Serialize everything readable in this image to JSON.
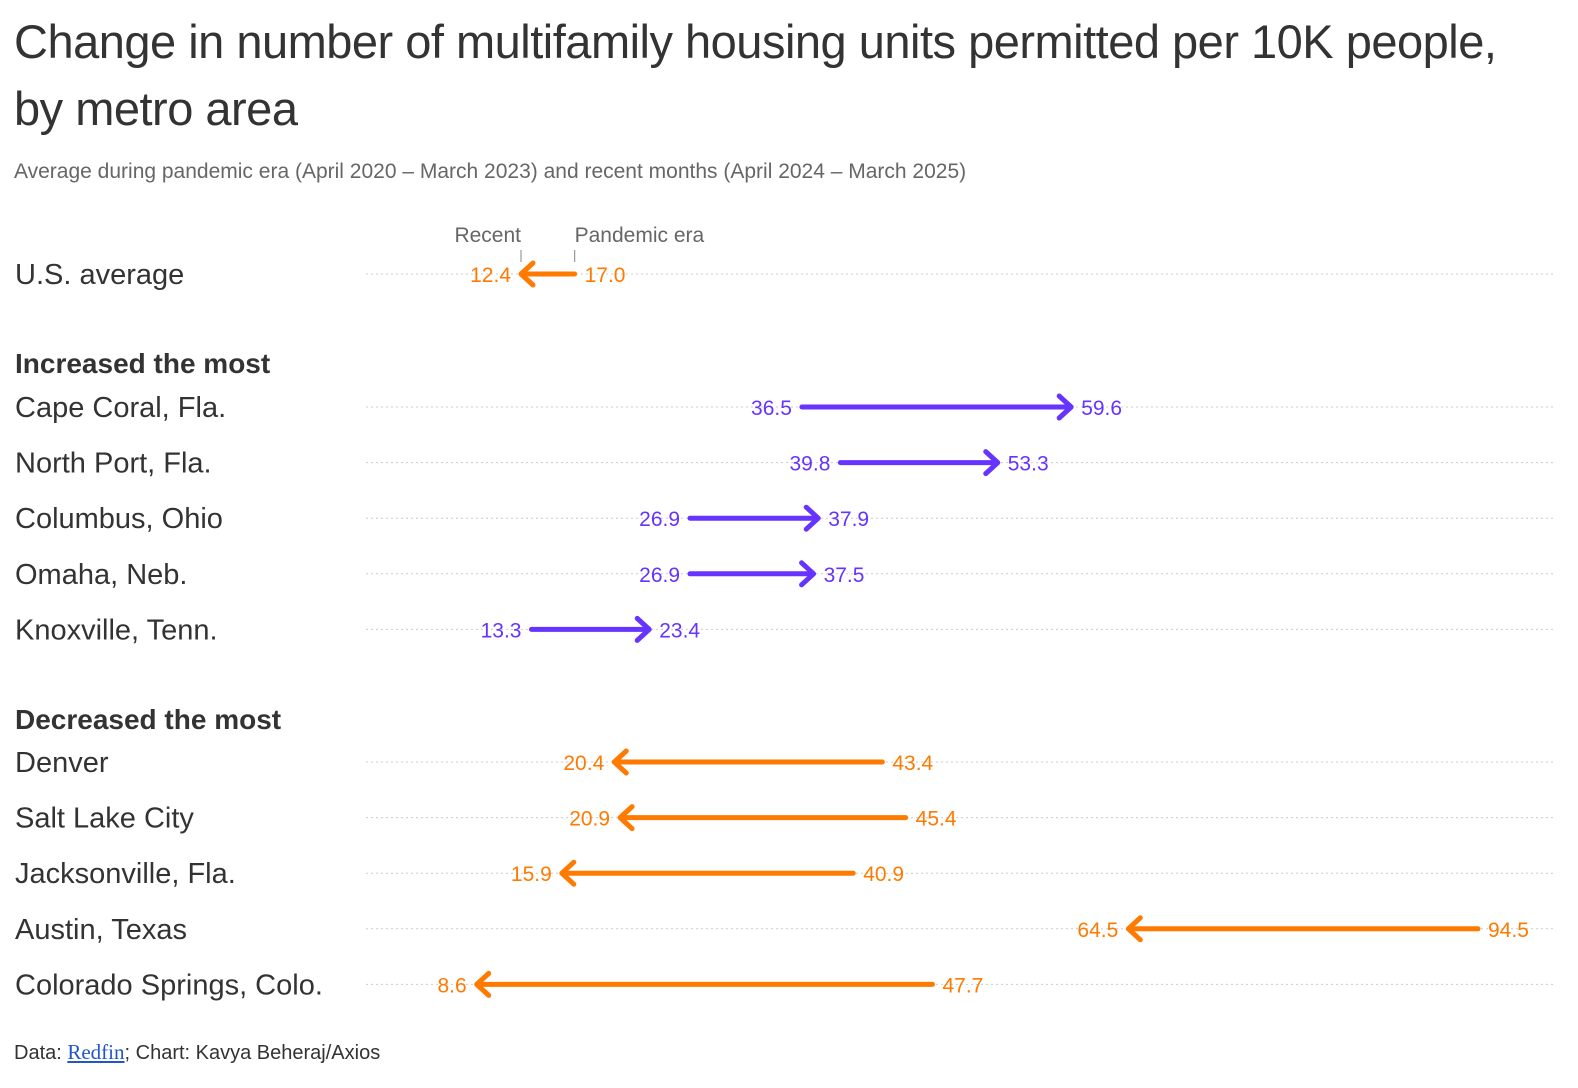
{
  "title": "Change in number of multifamily housing units permitted per 10K people, by metro area",
  "subtitle": "Average during pandemic era (April 2020 – March 2023) and recent months (April 2024 – March 2025)",
  "colors": {
    "increase": "#6633ff",
    "decrease": "#ff7a00",
    "text": "#333333",
    "muted": "#666666",
    "grid": "#cccccc"
  },
  "chart_data": {
    "type": "arrow-dot",
    "legend": {
      "recent_label": "Recent",
      "pandemic_label": "Pandemic era"
    },
    "groups": [
      {
        "heading": "",
        "rows": [
          {
            "metro": "U.S. average",
            "pandemic": 17.0,
            "recent": 12.4,
            "pandemic_label": "17.0",
            "recent_label": "12.4"
          }
        ]
      },
      {
        "heading": "Increased the most",
        "rows": [
          {
            "metro": "Cape Coral, Fla.",
            "pandemic": 36.5,
            "recent": 59.6,
            "pandemic_label": "36.5",
            "recent_label": "59.6"
          },
          {
            "metro": "North Port, Fla.",
            "pandemic": 39.8,
            "recent": 53.3,
            "pandemic_label": "39.8",
            "recent_label": "53.3"
          },
          {
            "metro": "Columbus, Ohio",
            "pandemic": 26.9,
            "recent": 37.9,
            "pandemic_label": "26.9",
            "recent_label": "37.9"
          },
          {
            "metro": "Omaha, Neb.",
            "pandemic": 26.9,
            "recent": 37.5,
            "pandemic_label": "26.9",
            "recent_label": "37.5"
          },
          {
            "metro": "Knoxville, Tenn.",
            "pandemic": 13.3,
            "recent": 23.4,
            "pandemic_label": "13.3",
            "recent_label": "23.4"
          }
        ]
      },
      {
        "heading": "Decreased the most",
        "rows": [
          {
            "metro": "Denver",
            "pandemic": 43.4,
            "recent": 20.4,
            "pandemic_label": "43.4",
            "recent_label": "20.4"
          },
          {
            "metro": "Salt Lake City",
            "pandemic": 45.4,
            "recent": 20.9,
            "pandemic_label": "45.4",
            "recent_label": "20.9"
          },
          {
            "metro": "Jacksonville, Fla.",
            "pandemic": 40.9,
            "recent": 15.9,
            "pandemic_label": "40.9",
            "recent_label": "15.9"
          },
          {
            "metro": "Austin, Texas",
            "pandemic": 94.5,
            "recent": 64.5,
            "pandemic_label": "94.5",
            "recent_label": "64.5"
          },
          {
            "metro": "Colorado Springs, Colo.",
            "pandemic": 47.7,
            "recent": 8.6,
            "pandemic_label": "47.7",
            "recent_label": "8.6"
          }
        ]
      }
    ]
  },
  "footer": {
    "prefix": "Data: ",
    "source_link": "Redfin",
    "suffix": "; Chart: Kavya Beheraj/Axios"
  }
}
